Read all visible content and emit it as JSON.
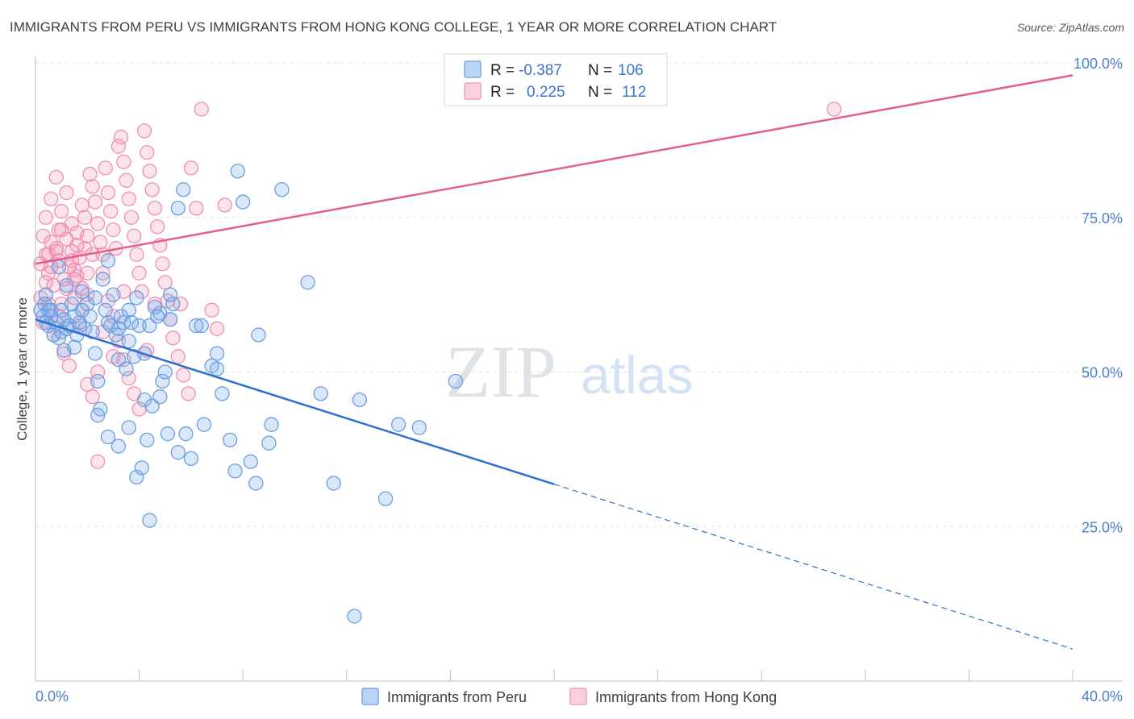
{
  "chart_data": {
    "type": "scatter",
    "title": "IMMIGRANTS FROM PERU VS IMMIGRANTS FROM HONG KONG COLLEGE, 1 YEAR OR MORE CORRELATION CHART",
    "source": "Source: ZipAtlas.com",
    "xlabel": "",
    "ylabel": "College, 1 year or more",
    "xlim": [
      0,
      40
    ],
    "ylim": [
      0,
      100
    ],
    "x_tick_labels": [
      "0.0%",
      "40.0%"
    ],
    "y_ticks": [
      25,
      50,
      75,
      100
    ],
    "y_tick_labels": [
      "25.0%",
      "50.0%",
      "75.0%",
      "100.0%"
    ],
    "grid": true,
    "watermark": {
      "zip": "ZIP",
      "atlas": "atlas"
    },
    "legend_stats": [
      {
        "r_label": "R =",
        "r_value": "-0.387",
        "n_label": "N =",
        "n_value": "106",
        "color": "#7aa9e8"
      },
      {
        "r_label": "R =",
        "r_value": "0.225",
        "n_label": "N =",
        "n_value": "112",
        "color": "#f0a0bb"
      }
    ],
    "series": [
      {
        "name": "Immigrants from Peru",
        "color": "#6a9fe0",
        "line_color": "#2f6fd0",
        "trend": {
          "x0": 0,
          "y0": 58.5,
          "x_solid_end": 20,
          "x1": 40,
          "y1": 5.2
        },
        "points": [
          [
            0.2,
            60
          ],
          [
            0.3,
            59
          ],
          [
            0.35,
            61
          ],
          [
            0.4,
            58
          ],
          [
            0.5,
            60
          ],
          [
            0.5,
            57.5
          ],
          [
            0.6,
            59
          ],
          [
            0.7,
            56
          ],
          [
            0.8,
            58
          ],
          [
            0.9,
            55.5
          ],
          [
            1.0,
            60
          ],
          [
            1.0,
            56.5
          ],
          [
            1.1,
            53.5
          ],
          [
            1.2,
            57
          ],
          [
            1.3,
            57.5
          ],
          [
            1.4,
            61
          ],
          [
            1.5,
            59
          ],
          [
            1.6,
            56
          ],
          [
            1.7,
            58
          ],
          [
            1.8,
            60
          ],
          [
            1.9,
            57
          ],
          [
            2.0,
            61
          ],
          [
            2.1,
            59
          ],
          [
            2.2,
            56.5
          ],
          [
            2.3,
            53
          ],
          [
            2.4,
            48.5
          ],
          [
            2.5,
            44
          ],
          [
            2.6,
            65
          ],
          [
            2.7,
            60
          ],
          [
            2.8,
            58
          ],
          [
            2.9,
            57.5
          ],
          [
            3.0,
            62.5
          ],
          [
            3.1,
            56
          ],
          [
            3.2,
            52
          ],
          [
            3.3,
            59
          ],
          [
            3.4,
            58
          ],
          [
            3.5,
            50.5
          ],
          [
            3.6,
            60
          ],
          [
            3.7,
            58
          ],
          [
            3.8,
            52.5
          ],
          [
            3.9,
            62
          ],
          [
            4.0,
            57.5
          ],
          [
            4.2,
            45.5
          ],
          [
            4.3,
            39
          ],
          [
            4.4,
            57.5
          ],
          [
            4.5,
            44.5
          ],
          [
            4.6,
            60.5
          ],
          [
            4.7,
            59
          ],
          [
            4.8,
            46
          ],
          [
            4.9,
            48.5
          ],
          [
            5.0,
            50
          ],
          [
            5.1,
            40
          ],
          [
            5.2,
            62.5
          ],
          [
            5.3,
            61
          ],
          [
            5.5,
            37
          ],
          [
            5.7,
            79.5
          ],
          [
            5.8,
            40
          ],
          [
            6.0,
            36
          ],
          [
            6.2,
            57.5
          ],
          [
            6.5,
            41.5
          ],
          [
            6.8,
            51
          ],
          [
            7.0,
            53
          ],
          [
            7.2,
            46.5
          ],
          [
            7.5,
            39
          ],
          [
            7.7,
            34
          ],
          [
            7.8,
            82.5
          ],
          [
            8.0,
            77.5
          ],
          [
            8.3,
            35.5
          ],
          [
            8.5,
            32
          ],
          [
            8.6,
            56
          ],
          [
            9.0,
            38.5
          ],
          [
            9.1,
            41.5
          ],
          [
            9.5,
            79.5
          ],
          [
            10.5,
            64.5
          ],
          [
            11,
            46.5
          ],
          [
            11.5,
            32
          ],
          [
            12.5,
            45.5
          ],
          [
            13.5,
            29.5
          ],
          [
            14.0,
            41.5
          ],
          [
            14.8,
            41
          ],
          [
            16.2,
            48.5
          ],
          [
            12.3,
            10.5
          ],
          [
            4.4,
            26
          ],
          [
            1.8,
            63
          ],
          [
            2.3,
            62
          ],
          [
            3.2,
            57
          ],
          [
            6.4,
            57.5
          ],
          [
            1.5,
            54
          ],
          [
            0.9,
            67
          ],
          [
            1.2,
            64
          ],
          [
            2.8,
            68
          ],
          [
            3.6,
            55
          ],
          [
            4.2,
            53
          ],
          [
            5.5,
            76.5
          ],
          [
            7.0,
            50.5
          ],
          [
            2.4,
            43
          ],
          [
            2.8,
            39.5
          ],
          [
            3.2,
            38
          ],
          [
            3.6,
            41
          ],
          [
            3.9,
            33
          ],
          [
            4.1,
            34.5
          ],
          [
            4.8,
            59.5
          ],
          [
            5.2,
            58.5
          ],
          [
            1.1,
            58.5
          ],
          [
            0.4,
            62.5
          ],
          [
            0.6,
            60
          ]
        ]
      },
      {
        "name": "Immigrants from Hong Kong",
        "color": "#f090b0",
        "line_color": "#e2608a",
        "trend": {
          "x0": 0,
          "y0": 67.5,
          "x1": 40,
          "y1": 98
        },
        "points": [
          [
            0.2,
            67.5
          ],
          [
            0.3,
            72
          ],
          [
            0.4,
            69
          ],
          [
            0.5,
            66
          ],
          [
            0.6,
            71
          ],
          [
            0.7,
            64
          ],
          [
            0.8,
            70
          ],
          [
            0.9,
            68
          ],
          [
            1.0,
            73
          ],
          [
            1.1,
            65
          ],
          [
            1.2,
            71.5
          ],
          [
            1.3,
            67
          ],
          [
            1.4,
            69.5
          ],
          [
            1.5,
            66.5
          ],
          [
            1.6,
            70.5
          ],
          [
            1.7,
            68.5
          ],
          [
            1.8,
            63.5
          ],
          [
            1.9,
            75
          ],
          [
            2.0,
            72
          ],
          [
            2.1,
            82
          ],
          [
            2.2,
            80
          ],
          [
            2.3,
            77.5
          ],
          [
            2.4,
            74
          ],
          [
            2.5,
            71
          ],
          [
            2.6,
            69
          ],
          [
            2.7,
            83
          ],
          [
            2.8,
            79
          ],
          [
            2.9,
            76
          ],
          [
            3.0,
            73
          ],
          [
            3.1,
            70
          ],
          [
            3.2,
            86.5
          ],
          [
            3.3,
            88
          ],
          [
            3.4,
            84
          ],
          [
            3.5,
            81
          ],
          [
            3.6,
            78
          ],
          [
            3.7,
            75
          ],
          [
            3.8,
            72
          ],
          [
            3.9,
            69
          ],
          [
            4.0,
            66
          ],
          [
            4.1,
            63
          ],
          [
            4.2,
            89
          ],
          [
            4.3,
            85.5
          ],
          [
            4.4,
            82.5
          ],
          [
            4.5,
            79.5
          ],
          [
            4.6,
            76.5
          ],
          [
            4.7,
            73.5
          ],
          [
            4.8,
            70.5
          ],
          [
            4.9,
            67.5
          ],
          [
            5.0,
            64.5
          ],
          [
            5.1,
            61.5
          ],
          [
            5.2,
            58.5
          ],
          [
            5.3,
            55.5
          ],
          [
            5.5,
            52.5
          ],
          [
            5.7,
            49.5
          ],
          [
            5.9,
            46.5
          ],
          [
            6.0,
            83
          ],
          [
            6.2,
            76.5
          ],
          [
            6.4,
            92.5
          ],
          [
            6.8,
            60
          ],
          [
            7.0,
            57
          ],
          [
            0.3,
            58
          ],
          [
            0.5,
            61
          ],
          [
            0.7,
            56
          ],
          [
            0.9,
            59
          ],
          [
            1.1,
            53
          ],
          [
            1.3,
            51
          ],
          [
            1.5,
            62
          ],
          [
            1.7,
            57.5
          ],
          [
            2.0,
            48
          ],
          [
            2.2,
            46
          ],
          [
            2.4,
            35.5
          ],
          [
            2.6,
            56.5
          ],
          [
            2.8,
            61.5
          ],
          [
            3.0,
            59
          ],
          [
            3.2,
            55
          ],
          [
            3.4,
            52
          ],
          [
            3.6,
            49
          ],
          [
            3.8,
            46.5
          ],
          [
            4.0,
            44
          ],
          [
            4.3,
            53.5
          ],
          [
            0.4,
            75
          ],
          [
            0.6,
            78
          ],
          [
            0.8,
            81.5
          ],
          [
            1.0,
            76
          ],
          [
            1.2,
            79
          ],
          [
            1.4,
            74
          ],
          [
            1.6,
            72.5
          ],
          [
            1.8,
            77
          ],
          [
            2.0,
            66
          ],
          [
            2.2,
            69
          ],
          [
            0.2,
            62
          ],
          [
            0.4,
            64.5
          ],
          [
            0.6,
            67
          ],
          [
            0.8,
            69.5
          ],
          [
            1.0,
            61
          ],
          [
            1.2,
            63.5
          ],
          [
            1.4,
            68
          ],
          [
            1.6,
            65.5
          ],
          [
            1.8,
            60
          ],
          [
            2.0,
            62.5
          ],
          [
            30.8,
            92.5
          ],
          [
            7.3,
            77
          ],
          [
            5.6,
            61
          ],
          [
            4.6,
            61
          ],
          [
            3.4,
            63
          ],
          [
            2.6,
            66
          ],
          [
            1.9,
            70
          ],
          [
            1.5,
            65
          ],
          [
            0.9,
            73
          ],
          [
            0.5,
            69
          ],
          [
            3.0,
            52.5
          ],
          [
            2.4,
            50
          ]
        ]
      }
    ]
  },
  "legend_bottom": [
    {
      "label": "Immigrants from Peru",
      "color": "#7aa9e8"
    },
    {
      "label": "Immigrants from Hong Kong",
      "color": "#f0a0bb"
    }
  ]
}
